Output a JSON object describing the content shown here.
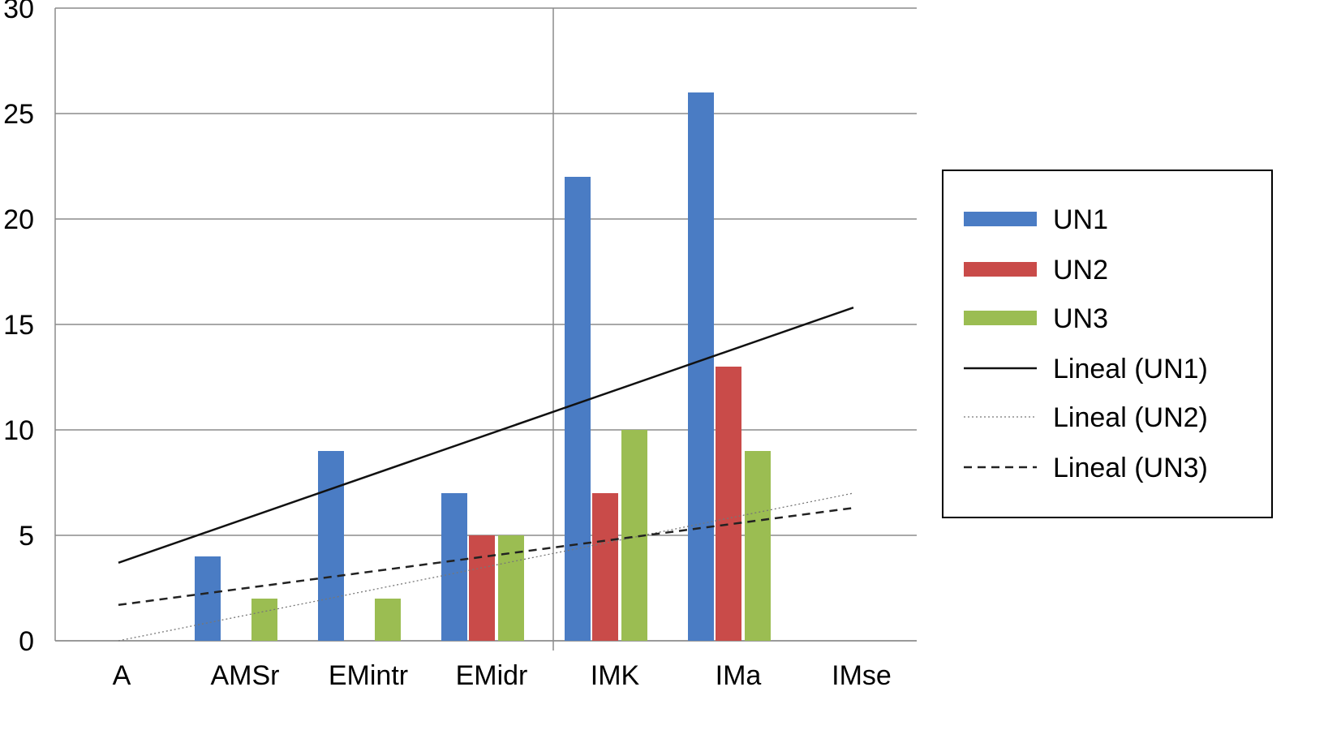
{
  "chart_data": {
    "type": "bar",
    "title": "",
    "xlabel": "",
    "ylabel": "",
    "categories": [
      "A",
      "AMSr",
      "EMintr",
      "EMidr",
      "IMK",
      "IMa",
      "IMse"
    ],
    "series": [
      {
        "name": "UN1",
        "color": "#4a7cc4",
        "values": [
          0,
          4,
          9,
          7,
          22,
          26,
          0
        ]
      },
      {
        "name": "UN2",
        "color": "#c94b49",
        "values": [
          0,
          0,
          0,
          5,
          7,
          13,
          0
        ]
      },
      {
        "name": "UN3",
        "color": "#9bbd52",
        "values": [
          0,
          2,
          2,
          5,
          10,
          9,
          0
        ]
      }
    ],
    "trendlines": [
      {
        "name": "Lineal (UN1)",
        "series": "UN1",
        "style": "solid",
        "start": 3.7,
        "end": 15.8
      },
      {
        "name": "Lineal (UN2)",
        "series": "UN2",
        "style": "dotted",
        "start": 0.0,
        "end": 7.0
      },
      {
        "name": "Lineal (UN3)",
        "series": "UN3",
        "style": "dashed",
        "start": 1.7,
        "end": 6.3
      }
    ],
    "ylim": [
      0,
      30
    ],
    "yticks": [
      "0",
      "5",
      "10",
      "15",
      "20",
      "25",
      "30"
    ],
    "grid": true,
    "legend_position": "right"
  }
}
